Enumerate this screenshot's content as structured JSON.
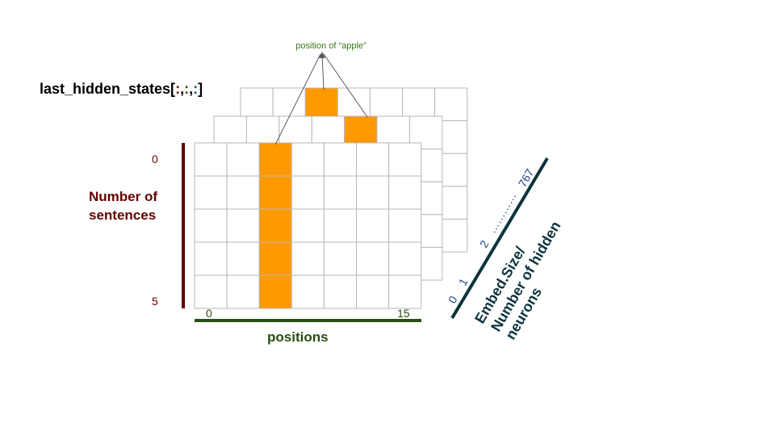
{
  "title": {
    "prefix": "last_hidden_states[",
    "dot": ":",
    "comma": ",",
    "suffix": "]",
    "dot_colors": [
      "#7f0000",
      "#274e13",
      "#1c4587"
    ]
  },
  "annotation": "position of “apple”",
  "sentence_axis": {
    "label_line1": "Number of",
    "label_line2": "sentences",
    "start": "0",
    "end": "5",
    "color": "#660000"
  },
  "position_axis": {
    "label": "positions",
    "start": "0",
    "end": "15",
    "color": "#274e13"
  },
  "embed_axis": {
    "label_line1": "Embed.Size/",
    "label_line2": "Number of hidden",
    "label_line3": "neurons",
    "ticks": [
      "0",
      "1",
      "2",
      "767"
    ],
    "ellipsis": "…………",
    "color": "#0c343d",
    "tick_color": "#1c4587"
  },
  "grid": {
    "highlight_color": "#ff9900",
    "line_color": "#b7b7b7"
  }
}
